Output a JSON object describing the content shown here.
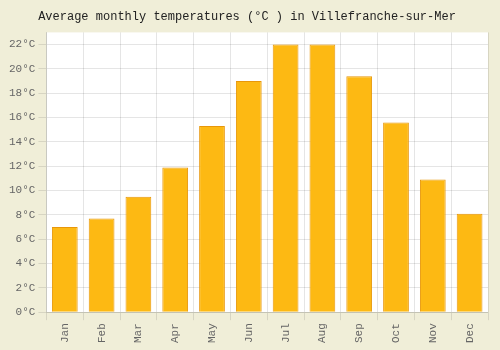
{
  "chart_data": {
    "type": "bar",
    "title": "Average monthly temperatures (°C ) in Villefranche-sur-Mer",
    "categories": [
      "Jan",
      "Feb",
      "Mar",
      "Apr",
      "May",
      "Jun",
      "Jul",
      "Aug",
      "Sep",
      "Oct",
      "Nov",
      "Dec"
    ],
    "values": [
      7.0,
      7.7,
      9.5,
      11.9,
      15.3,
      19.0,
      22.0,
      22.0,
      19.4,
      15.6,
      10.9,
      8.1
    ],
    "color": "#FDB913",
    "ylim": [
      0,
      23
    ],
    "yticks": [
      {
        "value": 0,
        "label": "0°C"
      },
      {
        "value": 2,
        "label": "2°C"
      },
      {
        "value": 4,
        "label": "4°C"
      },
      {
        "value": 6,
        "label": "6°C"
      },
      {
        "value": 8,
        "label": "8°C"
      },
      {
        "value": 10,
        "label": "10°C"
      },
      {
        "value": 12,
        "label": "12°C"
      },
      {
        "value": 14,
        "label": "14°C"
      },
      {
        "value": 16,
        "label": "16°C"
      },
      {
        "value": 18,
        "label": "18°C"
      },
      {
        "value": 20,
        "label": "20°C"
      },
      {
        "value": 22,
        "label": "22°C"
      }
    ],
    "grid": true
  }
}
